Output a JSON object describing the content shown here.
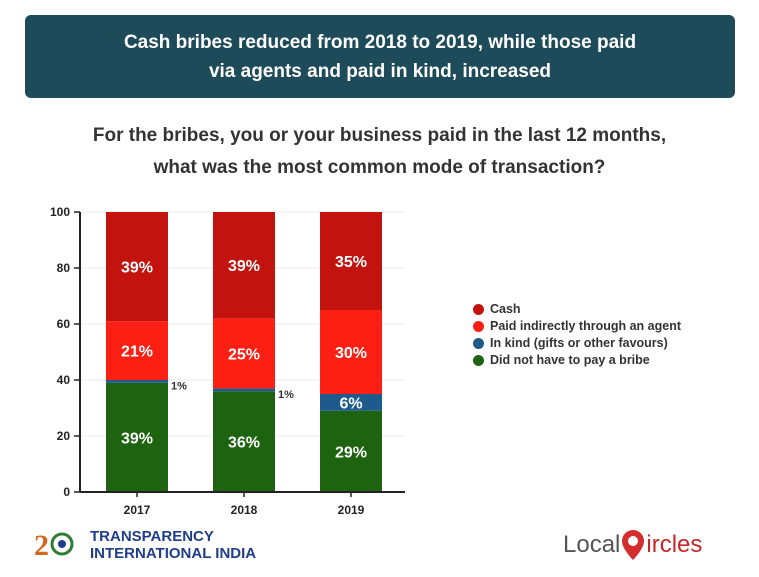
{
  "banner": {
    "line1": "Cash bribes reduced from 2018 to 2019, while those paid",
    "line2": "via agents and paid in kind, increased"
  },
  "question": {
    "line1": "For the bribes, you or your business paid in the last 12 months,",
    "line2": "what was the most common mode of transaction?"
  },
  "chart_data": {
    "type": "bar",
    "stacked": true,
    "categories": [
      "2017",
      "2018",
      "2019"
    ],
    "ylim": [
      0,
      100
    ],
    "yticks": [
      0,
      20,
      40,
      60,
      80,
      100
    ],
    "legend_position": "right",
    "series": [
      {
        "name": "Did not have to pay a bribe",
        "color": "#1e6410",
        "values": [
          39,
          36,
          29
        ],
        "labels": [
          "39%",
          "36%",
          "29%"
        ]
      },
      {
        "name": "In kind (gifts or other favours)",
        "color": "#1f5a8c",
        "values": [
          1,
          1,
          6
        ],
        "labels": [
          "1%",
          "1%",
          "6%"
        ]
      },
      {
        "name": "Paid indirectly through an agent",
        "color": "#fb1f14",
        "values": [
          21,
          25,
          30
        ],
        "labels": [
          "21%",
          "25%",
          "30%"
        ]
      },
      {
        "name": "Cash",
        "color": "#c2130e",
        "values": [
          39,
          39,
          35
        ],
        "labels": [
          "39%",
          "39%",
          "35%"
        ]
      }
    ]
  },
  "legend": [
    "Cash",
    "Paid indirectly through an agent",
    "In kind (gifts or other favours)",
    "Did not have to pay a bribe"
  ],
  "logos": {
    "ti_line1": "TRANSPARENCY",
    "ti_line2": "INTERNATIONAL INDIA",
    "ti_badge": "20",
    "lc_left": "Local",
    "lc_right": "ircles"
  }
}
